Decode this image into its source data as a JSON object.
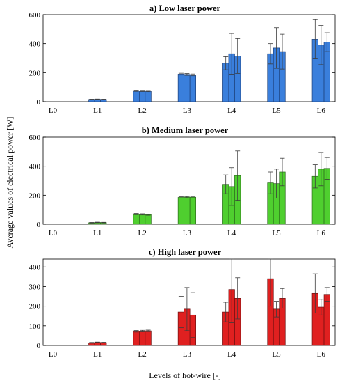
{
  "figure": {
    "ylabel": "Average values of electrical power [W]",
    "xlabel": "Levels of hot-wire [-]"
  },
  "chart_data": [
    {
      "type": "bar",
      "title": "a) Low laser power",
      "categories": [
        "L0",
        "L1",
        "L2",
        "L3",
        "L4",
        "L5",
        "L6"
      ],
      "ylim": [
        0,
        600
      ],
      "yticks": [
        0,
        200,
        400,
        600
      ],
      "grid": false,
      "colors": {
        "face": "#3a7fdc",
        "edge": "#1c3f78",
        "error": "#3c3c3c"
      },
      "series": [
        {
          "values": [
            0,
            15,
            75,
            190,
            265,
            330,
            430
          ],
          "errors": [
            0,
            2,
            4,
            6,
            45,
            70,
            135
          ]
        },
        {
          "values": [
            0,
            16,
            74,
            188,
            330,
            370,
            390
          ],
          "errors": [
            0,
            2,
            4,
            6,
            140,
            140,
            135
          ]
        },
        {
          "values": [
            0,
            15,
            73,
            185,
            315,
            345,
            410
          ],
          "errors": [
            0,
            2,
            4,
            6,
            120,
            120,
            65
          ]
        }
      ]
    },
    {
      "type": "bar",
      "title": "b) Medium laser power",
      "categories": [
        "L0",
        "L1",
        "L2",
        "L3",
        "L4",
        "L5",
        "L6"
      ],
      "ylim": [
        0,
        600
      ],
      "yticks": [
        0,
        200,
        400,
        600
      ],
      "grid": false,
      "colors": {
        "face": "#4fcf2f",
        "edge": "#2b6b1a",
        "error": "#3c3c3c"
      },
      "series": [
        {
          "values": [
            0,
            10,
            70,
            185,
            275,
            285,
            330
          ],
          "errors": [
            0,
            2,
            4,
            5,
            65,
            75,
            80
          ]
        },
        {
          "values": [
            0,
            12,
            68,
            187,
            260,
            280,
            380
          ],
          "errors": [
            0,
            2,
            4,
            5,
            130,
            100,
            115
          ]
        },
        {
          "values": [
            0,
            11,
            66,
            186,
            335,
            360,
            385
          ],
          "errors": [
            0,
            2,
            4,
            5,
            170,
            95,
            75
          ]
        }
      ]
    },
    {
      "type": "bar",
      "title": "c) High laser power",
      "categories": [
        "L0",
        "L1",
        "L2",
        "L3",
        "L4",
        "L5",
        "L6"
      ],
      "ylim": [
        0,
        440
      ],
      "yticks": [
        0,
        100,
        200,
        300,
        400
      ],
      "grid": false,
      "colors": {
        "face": "#e02020",
        "edge": "#6e1010",
        "error": "#3c3c3c"
      },
      "series": [
        {
          "values": [
            0,
            13,
            72,
            170,
            170,
            340,
            265
          ],
          "errors": [
            0,
            2,
            4,
            80,
            50,
            140,
            100
          ]
        },
        {
          "values": [
            0,
            15,
            73,
            185,
            285,
            185,
            195
          ],
          "errors": [
            0,
            2,
            4,
            110,
            170,
            40,
            40
          ]
        },
        {
          "values": [
            0,
            14,
            74,
            155,
            240,
            240,
            260
          ],
          "errors": [
            0,
            2,
            4,
            115,
            105,
            50,
            35
          ]
        }
      ]
    }
  ]
}
